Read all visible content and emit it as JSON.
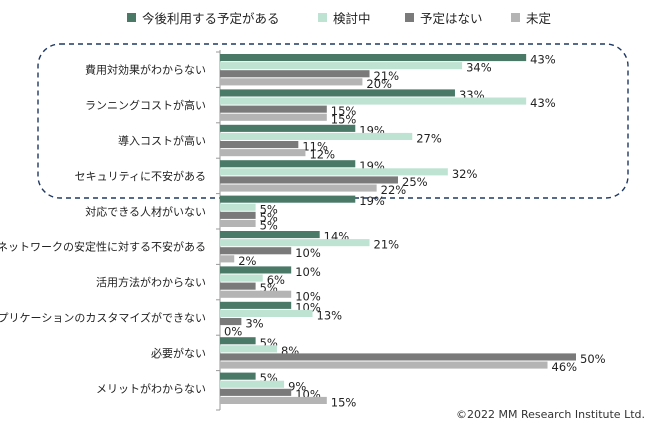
{
  "chart_data": {
    "type": "bar",
    "orientation": "horizontal",
    "categories": [
      "費用対効果がわからない",
      "ランニングコストが高い",
      "導入コストが高い",
      "セキュリティに不安がある",
      "対応できる人材がいない",
      "ネットワークの安定性に対する不安がある",
      "活用方法がわからない",
      "アプリケーションのカスタマイズができない",
      "必要がない",
      "メリットがわからない"
    ],
    "series": [
      {
        "name": "今後利用する予定がある",
        "color": "#4a7968",
        "values": [
          43,
          33,
          19,
          19,
          19,
          14,
          10,
          10,
          5,
          5
        ]
      },
      {
        "name": "検討中",
        "color": "#bfe3d2",
        "values": [
          34,
          43,
          27,
          32,
          5,
          21,
          6,
          13,
          8,
          9
        ]
      },
      {
        "name": "予定はない",
        "color": "#7a7a7a",
        "values": [
          21,
          15,
          11,
          25,
          5,
          10,
          5,
          3,
          50,
          10
        ]
      },
      {
        "name": "未定",
        "color": "#b4b4b4",
        "values": [
          20,
          15,
          12,
          22,
          5,
          2,
          10,
          0,
          46,
          15
        ]
      }
    ],
    "value_suffix": "%",
    "xlim": [
      0,
      50
    ],
    "grid": false,
    "legend_position": "top",
    "highlight_group": "dashed rounded box around first four categories"
  },
  "copyright": "©2022  MM Research Institute Ltd."
}
